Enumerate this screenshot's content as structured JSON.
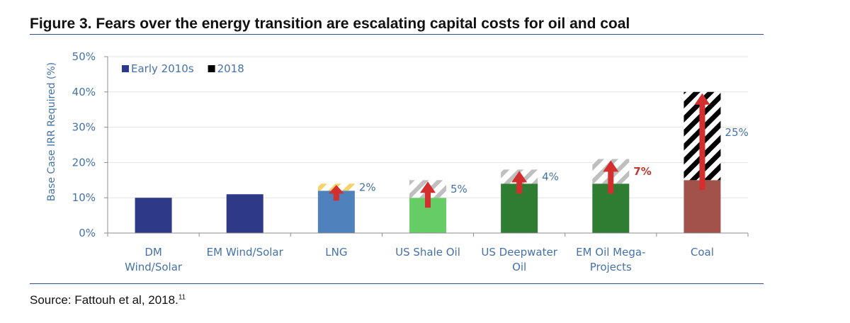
{
  "figure": {
    "title": "Figure 3. Fears over the energy transition are escalating capital costs for oil and coal",
    "source": "Source: Fattouh et al, 2018.",
    "source_ref": "11"
  },
  "chart_data": {
    "type": "bar",
    "title": "",
    "ylabel": "Base Case IRR Required (%)",
    "xlabel": "",
    "ylim": [
      0,
      50
    ],
    "yticks": [
      0,
      10,
      20,
      30,
      40,
      50
    ],
    "ytick_labels": [
      "0%",
      "10%",
      "20%",
      "30%",
      "40%",
      "50%"
    ],
    "grid": true,
    "legend_position": "top-left",
    "categories": [
      [
        "DM",
        "Wind/Solar"
      ],
      [
        "EM Wind/Solar"
      ],
      [
        "LNG"
      ],
      [
        "US Shale Oil"
      ],
      [
        "US Deepwater",
        "Oil"
      ],
      [
        "EM Oil  Mega-",
        "Projects"
      ],
      [
        "Coal"
      ]
    ],
    "series": [
      {
        "name": "Early 2010s",
        "values": [
          10,
          11,
          12,
          10,
          14,
          14,
          15
        ]
      },
      {
        "name": "2018",
        "values": [
          null,
          null,
          14,
          15,
          18,
          21,
          40
        ]
      }
    ],
    "increase_labels": [
      "",
      "",
      "2%",
      "5%",
      "4%",
      "7%",
      "25%"
    ],
    "bar_colors": [
      "#2e3a87",
      "#2e3a87",
      "#4f81bd",
      "#66cc66",
      "#2e7d32",
      "#2e7d32",
      "#a0524b"
    ],
    "hatch_colors": [
      "#bfbfbf",
      "#bfbfbf",
      "#f5d26b",
      "#bfbfbf",
      "#bfbfbf",
      "#bfbfbf",
      "#000000"
    ],
    "label_colors": [
      "#4472a8",
      "#4472a8",
      "#4472a8",
      "#4472a8",
      "#4472a8",
      "#c0392b",
      "#4472a8"
    ],
    "arrow_color": "#d32f2f",
    "legend_colors": [
      "#2e3a87",
      "#000000"
    ],
    "axis_text_color": "#4472a8",
    "gridline_color": "#e3e3e3"
  }
}
